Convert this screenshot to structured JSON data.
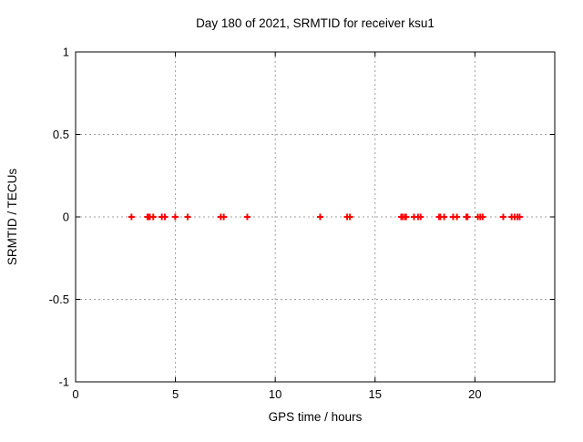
{
  "figure": {
    "background_color": "#ffffff",
    "border_color": "#000000",
    "grid_color": "#9e9e9e",
    "marker_color": "#ff0000"
  },
  "chart_data": {
    "type": "scatter",
    "title": "Day 180 of 2021, SRMTID for receiver ksu1",
    "xlabel": "GPS time / hours",
    "ylabel": "SRMTID / TECUs",
    "xlim": [
      0,
      24
    ],
    "ylim": [
      -1,
      1
    ],
    "xticks": [
      0,
      5,
      10,
      15,
      20
    ],
    "yticks": [
      1,
      0.5,
      0,
      -0.5,
      -1
    ],
    "xtick_labels": [
      "0",
      "5",
      "10",
      "15",
      "20"
    ],
    "ytick_labels": [
      "1",
      "0.5",
      "0",
      "-0.5",
      "-1"
    ],
    "grid": true,
    "legend": false,
    "marker": {
      "symbol": "plus",
      "color": "#ff0000",
      "size": 7,
      "stroke_width": 2
    },
    "series": [
      {
        "name": "SRMTID",
        "x": [
          2.8,
          3.6,
          3.66,
          3.72,
          3.89,
          4.32,
          4.47,
          4.99,
          5.61,
          7.27,
          7.42,
          8.6,
          12.25,
          13.6,
          13.74,
          16.31,
          16.37,
          16.49,
          16.55,
          16.95,
          17.15,
          17.28,
          18.21,
          18.27,
          18.46,
          18.91,
          19.1,
          19.57,
          19.63,
          20.15,
          20.27,
          20.39,
          21.42,
          21.84,
          21.99,
          22.13,
          22.24
        ],
        "y": [
          0,
          0,
          0,
          0,
          0,
          0,
          0,
          0,
          0,
          0,
          0,
          0,
          0,
          0,
          0,
          0,
          0,
          0,
          0,
          0,
          0,
          0,
          0,
          0,
          0,
          0,
          0,
          0,
          0,
          0,
          0,
          0,
          0,
          0,
          0,
          0,
          0
        ]
      }
    ]
  }
}
